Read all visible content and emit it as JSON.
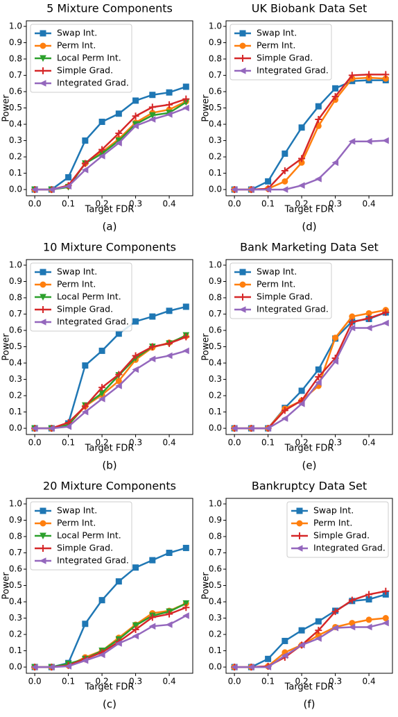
{
  "chart_data": [
    {
      "type": "line",
      "title": "5 Mixture Components",
      "caption": "(a)",
      "xlabel": "Target FDR",
      "ylabel": "Power",
      "legend": "upper left",
      "x": [
        0,
        0.05,
        0.1,
        0.15,
        0.2,
        0.25,
        0.3,
        0.35,
        0.4,
        0.45
      ],
      "xlim": [
        -0.025,
        0.47
      ],
      "ylim": [
        -0.038,
        1.034
      ],
      "xticks": [
        {
          "value": 0,
          "label": "0.0"
        },
        0.1,
        0.2,
        0.3,
        0.4
      ],
      "yticks": [
        {
          "value": 0,
          "label": "0.0"
        },
        0.1,
        0.2,
        0.3,
        0.4,
        0.5,
        0.6,
        0.7,
        0.8,
        0.9,
        {
          "value": 1,
          "label": "1.0"
        }
      ],
      "series": [
        {
          "name": "Swap Int.",
          "color": "#1f77b4",
          "marker": "s",
          "values": [
            0,
            0,
            0.075,
            0.3,
            0.415,
            0.465,
            0.545,
            0.58,
            0.595,
            0.63
          ]
        },
        {
          "name": "Perm Int.",
          "color": "#ff7f0e",
          "marker": "o",
          "values": [
            0,
            0,
            0.02,
            0.16,
            0.23,
            0.31,
            0.41,
            0.47,
            0.49,
            0.54
          ]
        },
        {
          "name": "Local Perm Int.",
          "color": "#2ca02c",
          "marker": "v",
          "values": [
            0,
            0,
            0.015,
            0.16,
            0.22,
            0.3,
            0.4,
            0.455,
            0.47,
            0.535
          ]
        },
        {
          "name": "Simple Grad.",
          "color": "#d62728",
          "marker": "+",
          "values": [
            0,
            0,
            0.025,
            0.16,
            0.245,
            0.345,
            0.45,
            0.505,
            0.52,
            0.555
          ]
        },
        {
          "name": "Integrated Grad.",
          "color": "#9467bd",
          "marker": "<",
          "values": [
            0,
            0,
            0.02,
            0.12,
            0.205,
            0.285,
            0.39,
            0.43,
            0.46,
            0.5
          ]
        }
      ]
    },
    {
      "type": "line",
      "title": "UK Biobank Data Set",
      "caption": "(d)",
      "xlabel": "Target FDR",
      "ylabel": "Power",
      "legend": "upper left",
      "x": [
        0,
        0.05,
        0.1,
        0.15,
        0.2,
        0.25,
        0.3,
        0.35,
        0.4,
        0.45
      ],
      "xlim": [
        -0.025,
        0.47
      ],
      "ylim": [
        -0.038,
        1.034
      ],
      "xticks": [
        {
          "value": 0,
          "label": "0.0"
        },
        0.1,
        0.2,
        0.3,
        0.4
      ],
      "yticks": [
        {
          "value": 0,
          "label": "0.0"
        },
        0.1,
        0.2,
        0.3,
        0.4,
        0.5,
        0.6,
        0.7,
        0.8,
        0.9,
        {
          "value": 1,
          "label": "1.0"
        }
      ],
      "series": [
        {
          "name": "Swap Int.",
          "color": "#1f77b4",
          "marker": "s",
          "values": [
            0,
            0,
            0.05,
            0.22,
            0.38,
            0.51,
            0.62,
            0.665,
            0.67,
            0.67
          ]
        },
        {
          "name": "Perm Int.",
          "color": "#ff7f0e",
          "marker": "o",
          "values": [
            0,
            0,
            0.005,
            0.05,
            0.165,
            0.39,
            0.55,
            0.68,
            0.685,
            0.68
          ]
        },
        {
          "name": "Simple Grad.",
          "color": "#d62728",
          "marker": "+",
          "values": [
            0,
            0,
            0.005,
            0.115,
            0.19,
            0.43,
            0.57,
            0.7,
            0.705,
            0.705
          ]
        },
        {
          "name": "Integrated Grad.",
          "color": "#9467bd",
          "marker": "<",
          "values": [
            0,
            0,
            0,
            0,
            0.025,
            0.065,
            0.165,
            0.295,
            0.295,
            0.3
          ]
        }
      ]
    },
    {
      "type": "line",
      "title": "10 Mixture Components",
      "caption": "(b)",
      "xlabel": "Target FDR",
      "ylabel": "Power",
      "legend": "upper left",
      "x": [
        0,
        0.05,
        0.1,
        0.15,
        0.2,
        0.25,
        0.3,
        0.35,
        0.4,
        0.45
      ],
      "xlim": [
        -0.025,
        0.47
      ],
      "ylim": [
        -0.038,
        1.034
      ],
      "xticks": [
        {
          "value": 0,
          "label": "0.0"
        },
        0.1,
        0.2,
        0.3,
        0.4
      ],
      "yticks": [
        {
          "value": 0,
          "label": "0.0"
        },
        0.1,
        0.2,
        0.3,
        0.4,
        0.5,
        0.6,
        0.7,
        0.8,
        0.9,
        {
          "value": 1,
          "label": "1.0"
        }
      ],
      "series": [
        {
          "name": "Swap Int.",
          "color": "#1f77b4",
          "marker": "s",
          "values": [
            0,
            0,
            0.03,
            0.385,
            0.475,
            0.58,
            0.655,
            0.685,
            0.72,
            0.745
          ]
        },
        {
          "name": "Perm Int.",
          "color": "#ff7f0e",
          "marker": "o",
          "values": [
            0,
            0,
            0.02,
            0.135,
            0.205,
            0.29,
            0.42,
            0.495,
            0.525,
            0.565
          ]
        },
        {
          "name": "Local Perm Int.",
          "color": "#2ca02c",
          "marker": "v",
          "values": [
            0,
            0,
            0.02,
            0.14,
            0.215,
            0.325,
            0.43,
            0.5,
            0.52,
            0.57
          ]
        },
        {
          "name": "Simple Grad.",
          "color": "#d62728",
          "marker": "+",
          "values": [
            0,
            0,
            0.035,
            0.135,
            0.25,
            0.33,
            0.445,
            0.5,
            0.52,
            0.56
          ]
        },
        {
          "name": "Integrated Grad.",
          "color": "#9467bd",
          "marker": "<",
          "values": [
            0,
            0,
            0.01,
            0.1,
            0.18,
            0.26,
            0.36,
            0.425,
            0.445,
            0.475
          ]
        }
      ]
    },
    {
      "type": "line",
      "title": "Bank Marketing Data Set",
      "caption": "(e)",
      "xlabel": "Target FDR",
      "ylabel": "Power",
      "legend": "upper left",
      "x": [
        0,
        0.05,
        0.1,
        0.15,
        0.2,
        0.25,
        0.3,
        0.35,
        0.4,
        0.45
      ],
      "xlim": [
        -0.025,
        0.47
      ],
      "ylim": [
        -0.038,
        1.034
      ],
      "xticks": [
        {
          "value": 0,
          "label": "0.0"
        },
        0.1,
        0.2,
        0.3,
        0.4
      ],
      "yticks": [
        {
          "value": 0,
          "label": "0.0"
        },
        0.1,
        0.2,
        0.3,
        0.4,
        0.5,
        0.6,
        0.7,
        0.8,
        0.9,
        {
          "value": 1,
          "label": "1.0"
        }
      ],
      "series": [
        {
          "name": "Swap Int.",
          "color": "#1f77b4",
          "marker": "s",
          "values": [
            0,
            0,
            0,
            0.125,
            0.23,
            0.36,
            0.55,
            0.655,
            0.67,
            0.71
          ]
        },
        {
          "name": "Perm Int.",
          "color": "#ff7f0e",
          "marker": "o",
          "values": [
            0,
            0,
            0,
            0.12,
            0.17,
            0.26,
            0.555,
            0.685,
            0.705,
            0.725
          ]
        },
        {
          "name": "Simple Grad.",
          "color": "#d62728",
          "marker": "+",
          "values": [
            0,
            0,
            0,
            0.11,
            0.17,
            0.315,
            0.43,
            0.65,
            0.675,
            0.71
          ]
        },
        {
          "name": "Integrated Grad.",
          "color": "#9467bd",
          "marker": "<",
          "values": [
            0,
            0,
            0,
            0.06,
            0.15,
            0.28,
            0.41,
            0.615,
            0.615,
            0.645
          ]
        }
      ]
    },
    {
      "type": "line",
      "title": "20 Mixture Components",
      "caption": "(c)",
      "xlabel": "Target FDR",
      "ylabel": "Power",
      "legend": "upper left",
      "x": [
        0,
        0.05,
        0.1,
        0.15,
        0.2,
        0.25,
        0.3,
        0.35,
        0.4,
        0.45
      ],
      "xlim": [
        -0.025,
        0.47
      ],
      "ylim": [
        -0.038,
        1.034
      ],
      "xticks": [
        {
          "value": 0,
          "label": "0.0"
        },
        0.1,
        0.2,
        0.3,
        0.4
      ],
      "yticks": [
        {
          "value": 0,
          "label": "0.0"
        },
        0.1,
        0.2,
        0.3,
        0.4,
        0.5,
        0.6,
        0.7,
        0.8,
        0.9,
        {
          "value": 1,
          "label": "1.0"
        }
      ],
      "series": [
        {
          "name": "Swap Int.",
          "color": "#1f77b4",
          "marker": "s",
          "values": [
            0,
            0,
            0.025,
            0.265,
            0.41,
            0.525,
            0.61,
            0.655,
            0.7,
            0.73
          ]
        },
        {
          "name": "Perm Int.",
          "color": "#ff7f0e",
          "marker": "o",
          "values": [
            0,
            0,
            0.01,
            0.06,
            0.1,
            0.18,
            0.26,
            0.33,
            0.345,
            0.39
          ]
        },
        {
          "name": "Local Perm Int.",
          "color": "#2ca02c",
          "marker": "v",
          "values": [
            0,
            0,
            0.02,
            0.05,
            0.1,
            0.17,
            0.255,
            0.315,
            0.34,
            0.39
          ]
        },
        {
          "name": "Simple Grad.",
          "color": "#d62728",
          "marker": "+",
          "values": [
            0,
            0,
            0.01,
            0.05,
            0.09,
            0.155,
            0.23,
            0.305,
            0.325,
            0.365
          ]
        },
        {
          "name": "Integrated Grad.",
          "color": "#9467bd",
          "marker": "<",
          "values": [
            0,
            0,
            0.005,
            0.04,
            0.075,
            0.145,
            0.19,
            0.25,
            0.26,
            0.315
          ]
        }
      ]
    },
    {
      "type": "line",
      "title": "Bankruptcy Data Set",
      "caption": "(f)",
      "xlabel": "Target FDR",
      "ylabel": "Power",
      "legend": "upper right",
      "x": [
        0,
        0.05,
        0.1,
        0.15,
        0.2,
        0.25,
        0.3,
        0.35,
        0.4,
        0.45
      ],
      "xlim": [
        -0.025,
        0.47
      ],
      "ylim": [
        -0.038,
        1.034
      ],
      "xticks": [
        {
          "value": 0,
          "label": "0.0"
        },
        0.1,
        0.2,
        0.3,
        0.4
      ],
      "yticks": [
        {
          "value": 0,
          "label": "0.0"
        },
        0.1,
        0.2,
        0.3,
        0.4,
        0.5,
        0.6,
        0.7,
        0.8,
        0.9,
        {
          "value": 1,
          "label": "1.0"
        }
      ],
      "series": [
        {
          "name": "Swap Int.",
          "color": "#1f77b4",
          "marker": "s",
          "values": [
            0,
            0,
            0.05,
            0.16,
            0.225,
            0.28,
            0.345,
            0.405,
            0.415,
            0.445
          ]
        },
        {
          "name": "Perm Int.",
          "color": "#ff7f0e",
          "marker": "o",
          "values": [
            0,
            0,
            0.005,
            0.09,
            0.135,
            0.195,
            0.245,
            0.27,
            0.29,
            0.3
          ]
        },
        {
          "name": "Simple Grad.",
          "color": "#d62728",
          "marker": "+",
          "values": [
            0,
            0,
            0.005,
            0.06,
            0.135,
            0.225,
            0.34,
            0.41,
            0.445,
            0.465
          ]
        },
        {
          "name": "Integrated Grad.",
          "color": "#9467bd",
          "marker": "<",
          "values": [
            0,
            0,
            0,
            0.07,
            0.135,
            0.175,
            0.24,
            0.245,
            0.245,
            0.27
          ]
        }
      ]
    }
  ]
}
